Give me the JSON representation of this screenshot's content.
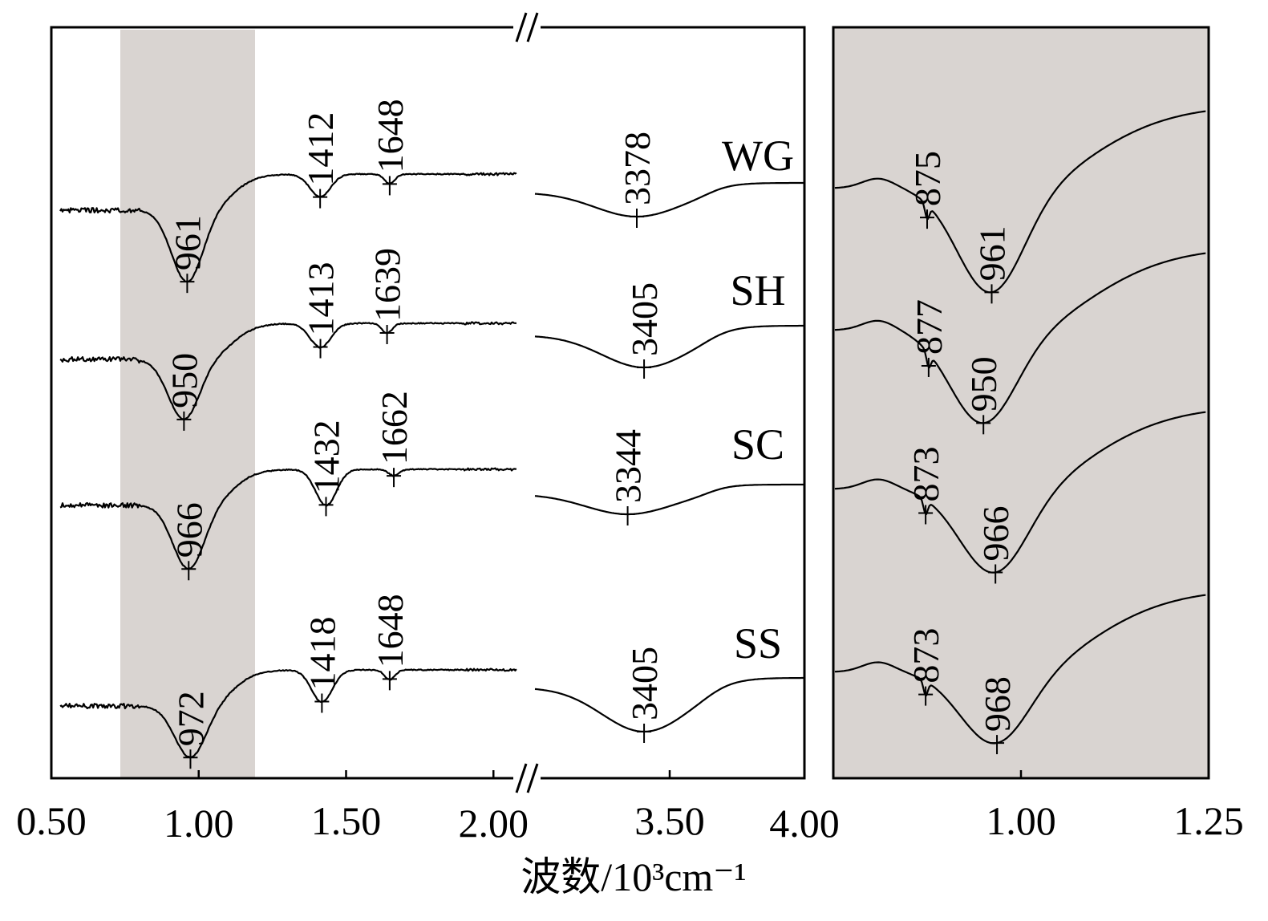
{
  "chart_data": [
    {
      "type": "line",
      "panel": "main",
      "xlabel": "波数/10³cm⁻¹",
      "x_ticks": [
        "0.50",
        "1.00",
        "1.50",
        "2.00",
        "3.50",
        "4.00"
      ],
      "x_break": true,
      "shaded_region_x": [
        0.75,
        1.25
      ],
      "series": [
        {
          "name": "WG",
          "peaks": [
            {
              "x": 0.961,
              "label": "961"
            },
            {
              "x": 1.412,
              "label": "1412"
            },
            {
              "x": 1.648,
              "label": "1648"
            },
            {
              "x": 3.378,
              "label": "3378"
            }
          ]
        },
        {
          "name": "SH",
          "peaks": [
            {
              "x": 0.95,
              "label": "950"
            },
            {
              "x": 1.413,
              "label": "1413"
            },
            {
              "x": 1.639,
              "label": "1639"
            },
            {
              "x": 3.405,
              "label": "3405"
            }
          ]
        },
        {
          "name": "SC",
          "peaks": [
            {
              "x": 0.966,
              "label": "966"
            },
            {
              "x": 1.432,
              "label": "1432"
            },
            {
              "x": 1.662,
              "label": "1662"
            },
            {
              "x": 3.344,
              "label": "3344"
            }
          ]
        },
        {
          "name": "SS",
          "peaks": [
            {
              "x": 0.972,
              "label": "972"
            },
            {
              "x": 1.418,
              "label": "1418"
            },
            {
              "x": 1.648,
              "label": "1648"
            },
            {
              "x": 3.405,
              "label": "3405"
            }
          ]
        }
      ]
    },
    {
      "type": "line",
      "panel": "zoom",
      "x_ticks": [
        "1.00",
        "1.25"
      ],
      "xlim": [
        0.75,
        1.25
      ],
      "series": [
        {
          "name": "WG",
          "peaks": [
            {
              "x": 0.875,
              "label": "875"
            },
            {
              "x": 0.961,
              "label": "961"
            }
          ]
        },
        {
          "name": "SH",
          "peaks": [
            {
              "x": 0.877,
              "label": "877"
            },
            {
              "x": 0.95,
              "label": "950"
            }
          ]
        },
        {
          "name": "SC",
          "peaks": [
            {
              "x": 0.873,
              "label": "873"
            },
            {
              "x": 0.966,
              "label": "966"
            }
          ]
        },
        {
          "name": "SS",
          "peaks": [
            {
              "x": 0.873,
              "label": "873"
            },
            {
              "x": 0.968,
              "label": "968"
            }
          ]
        }
      ]
    }
  ]
}
